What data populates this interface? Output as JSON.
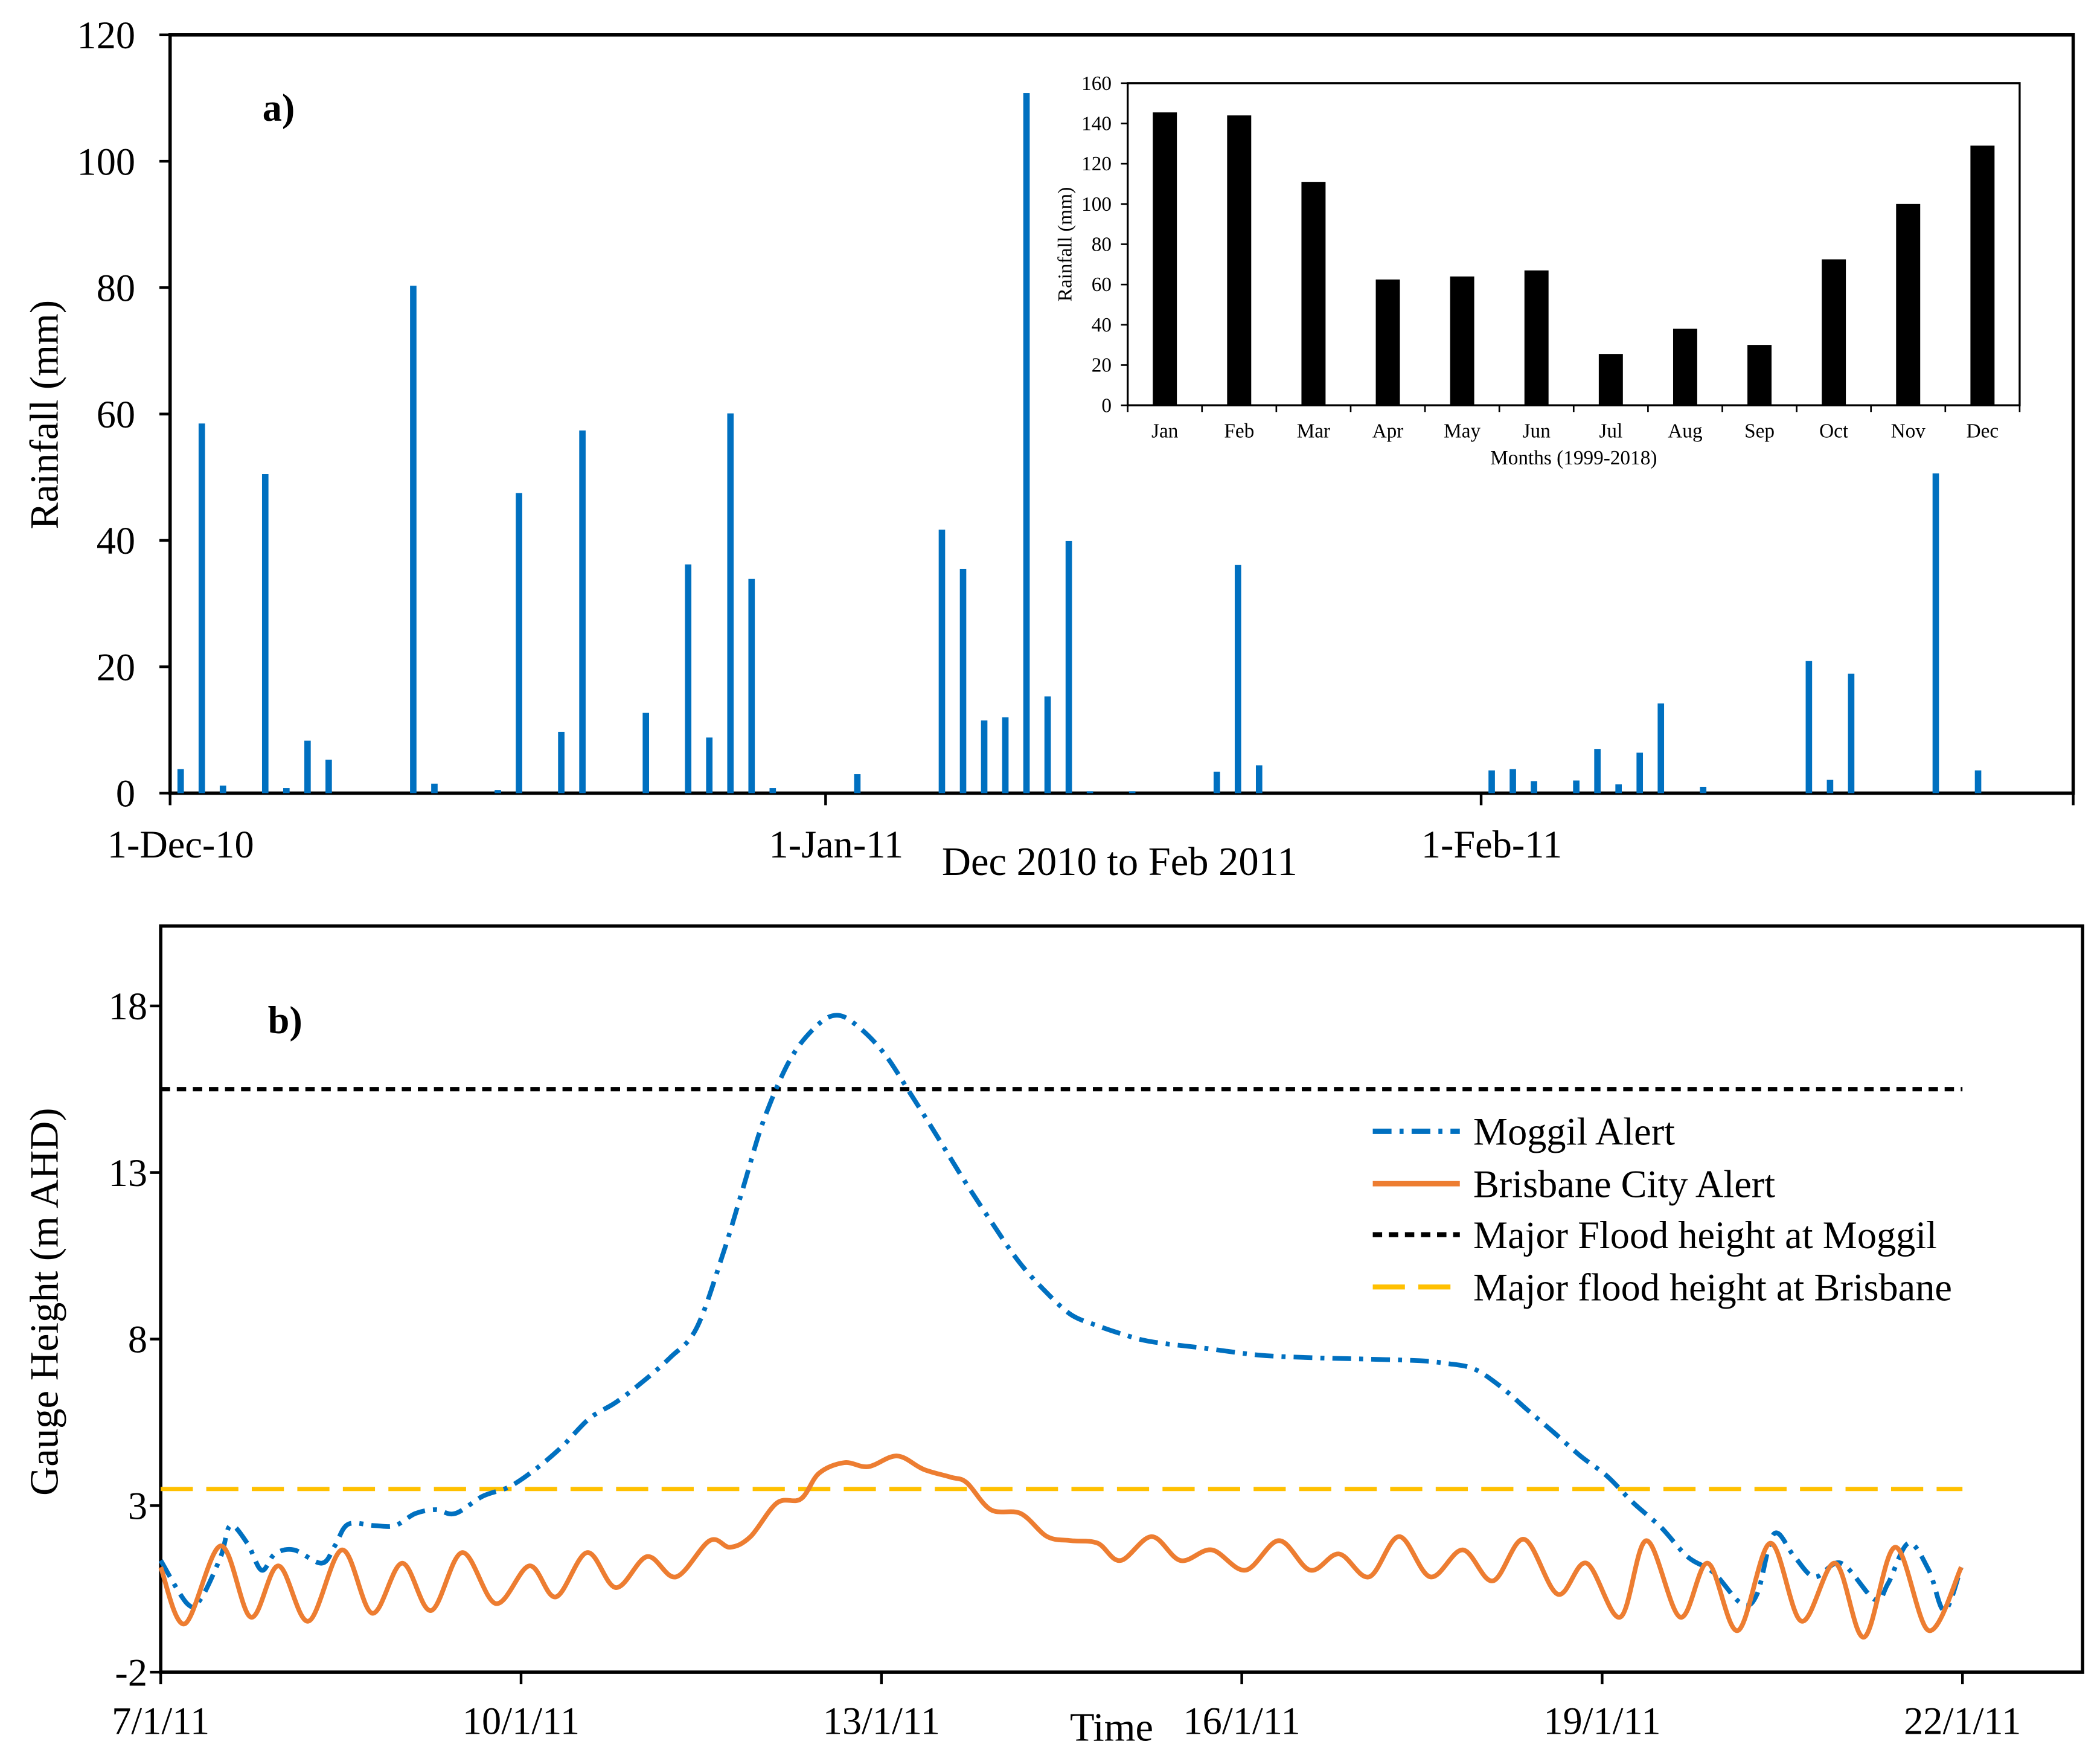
{
  "chart_data": [
    {
      "type": "bar",
      "annotation": "a)",
      "xlabel": "Dec 2010 to Feb 2011",
      "ylabel": "Rainfall (mm)",
      "xlim": [
        0,
        90
      ],
      "ylim": [
        0,
        120
      ],
      "yticks": [
        0,
        20,
        40,
        60,
        80,
        100,
        120
      ],
      "xticks": [
        {
          "day": 0,
          "label": "1-Dec-10"
        },
        {
          "day": 31,
          "label": "1-Jan-11"
        },
        {
          "day": 62,
          "label": "1-Feb-11"
        }
      ],
      "color": "#0070C0",
      "x": [
        0,
        1,
        2,
        4,
        5,
        6,
        7,
        11,
        12,
        15,
        16,
        18,
        19,
        22,
        24,
        25,
        26,
        27,
        28,
        32,
        36,
        37,
        38,
        39,
        40,
        41,
        42,
        43,
        45,
        49,
        50,
        51,
        62,
        63,
        64,
        66,
        67,
        68,
        69,
        70,
        72,
        77,
        78,
        79,
        83,
        85
      ],
      "values": [
        3.8,
        58.5,
        1.2,
        50.5,
        0.8,
        8.3,
        5.3,
        80.3,
        1.5,
        0.5,
        47.5,
        9.7,
        57.4,
        12.7,
        36.2,
        8.8,
        60.1,
        33.9,
        0.8,
        3.0,
        41.7,
        35.5,
        11.5,
        12.0,
        110.8,
        15.3,
        39.9,
        0.3,
        0.3,
        3.4,
        36.1,
        4.4,
        3.6,
        3.8,
        1.9,
        2.0,
        7.0,
        1.4,
        6.4,
        14.2,
        1.0,
        20.9,
        2.1,
        18.9,
        50.6,
        3.6
      ]
    },
    {
      "type": "bar",
      "xlabel": "Months (1999-2018)",
      "ylabel": "Rainfall  (mm)",
      "ylim": [
        0,
        160
      ],
      "yticks": [
        0,
        20,
        40,
        60,
        80,
        100,
        120,
        140,
        160
      ],
      "color": "#000000",
      "categories": [
        "Jan",
        "Feb",
        "Mar",
        "Apr",
        "May",
        "Jun",
        "Jul",
        "Aug",
        "Sep",
        "Oct",
        "Nov",
        "Dec"
      ],
      "values": [
        145.5,
        144,
        111,
        62.5,
        64,
        67,
        25.5,
        38,
        30,
        72.5,
        100,
        129
      ]
    },
    {
      "type": "line",
      "annotation": "b)",
      "xlabel": "Time",
      "ylabel": "Gauge Height (m AHD)",
      "xlim": [
        0,
        16
      ],
      "ylim": [
        -2,
        20.4
      ],
      "yticks": [
        -2,
        3,
        8,
        13,
        18
      ],
      "xticks": [
        {
          "day": 0,
          "label": "7/1/11"
        },
        {
          "day": 3,
          "label": "10/1/11"
        },
        {
          "day": 6,
          "label": "13/1/11"
        },
        {
          "day": 9,
          "label": "16/1/11"
        },
        {
          "day": 12,
          "label": "19/1/11"
        },
        {
          "day": 15,
          "label": "22/1/11"
        }
      ],
      "legend": "right",
      "series": [
        {
          "name": "Moggil Alert",
          "color": "#0070C0",
          "points": [
            [
              0,
              1.35
            ],
            [
              0.22,
              0.06
            ],
            [
              0.33,
              0.18
            ],
            [
              0.5,
              1.47
            ],
            [
              0.58,
              2.4
            ],
            [
              0.72,
              1.87
            ],
            [
              0.84,
              1.06
            ],
            [
              0.95,
              1.55
            ],
            [
              1.11,
              1.67
            ],
            [
              1.34,
              1.27
            ],
            [
              1.45,
              1.79
            ],
            [
              1.56,
              2.44
            ],
            [
              1.78,
              2.4
            ],
            [
              1.95,
              2.4
            ],
            [
              2.12,
              2.76
            ],
            [
              2.29,
              2.88
            ],
            [
              2.45,
              2.76
            ],
            [
              2.68,
              3.28
            ],
            [
              2.9,
              3.56
            ],
            [
              3.12,
              4.09
            ],
            [
              3.34,
              4.77
            ],
            [
              3.57,
              5.62
            ],
            [
              3.79,
              6.1
            ],
            [
              4.01,
              6.71
            ],
            [
              4.24,
              7.44
            ],
            [
              4.46,
              8.32
            ],
            [
              4.68,
              10.54
            ],
            [
              4.85,
              12.56
            ],
            [
              5.02,
              14.57
            ],
            [
              5.24,
              16.39
            ],
            [
              5.46,
              17.4
            ],
            [
              5.63,
              17.72
            ],
            [
              5.8,
              17.4
            ],
            [
              6.02,
              16.59
            ],
            [
              6.24,
              15.38
            ],
            [
              6.47,
              14.05
            ],
            [
              6.69,
              12.76
            ],
            [
              6.91,
              11.55
            ],
            [
              7.14,
              10.34
            ],
            [
              7.36,
              9.45
            ],
            [
              7.58,
              8.73
            ],
            [
              7.8,
              8.4
            ],
            [
              8.03,
              8.12
            ],
            [
              8.25,
              7.92
            ],
            [
              8.7,
              7.72
            ],
            [
              9.14,
              7.52
            ],
            [
              9.59,
              7.44
            ],
            [
              10.03,
              7.4
            ],
            [
              10.48,
              7.35
            ],
            [
              10.7,
              7.27
            ],
            [
              10.93,
              7.11
            ],
            [
              11.15,
              6.59
            ],
            [
              11.37,
              5.9
            ],
            [
              11.59,
              5.22
            ],
            [
              11.82,
              4.49
            ],
            [
              12.04,
              3.89
            ],
            [
              12.26,
              3.08
            ],
            [
              12.49,
              2.35
            ],
            [
              12.71,
              1.47
            ],
            [
              12.93,
              0.98
            ],
            [
              13.16,
              0.06
            ],
            [
              13.29,
              0.34
            ],
            [
              13.43,
              2.15
            ],
            [
              13.6,
              1.47
            ],
            [
              13.77,
              0.86
            ],
            [
              13.99,
              1.27
            ],
            [
              14.27,
              0.18
            ],
            [
              14.38,
              0.66
            ],
            [
              14.55,
              1.87
            ],
            [
              14.72,
              1.06
            ],
            [
              14.85,
              -0.15
            ],
            [
              14.99,
              1.15
            ]
          ]
        },
        {
          "name": "Brisbane City Alert",
          "color": "#ED7D31",
          "points": [
            [
              0,
              1.15
            ],
            [
              0.2,
              -0.55
            ],
            [
              0.5,
              1.79
            ],
            [
              0.75,
              -0.35
            ],
            [
              0.98,
              1.19
            ],
            [
              1.23,
              -0.47
            ],
            [
              1.51,
              1.67
            ],
            [
              1.76,
              -0.23
            ],
            [
              2.01,
              1.27
            ],
            [
              2.25,
              -0.15
            ],
            [
              2.51,
              1.59
            ],
            [
              2.79,
              0.06
            ],
            [
              3.07,
              1.19
            ],
            [
              3.29,
              0.26
            ],
            [
              3.55,
              1.59
            ],
            [
              3.79,
              0.54
            ],
            [
              4.05,
              1.47
            ],
            [
              4.29,
              0.86
            ],
            [
              4.57,
              1.95
            ],
            [
              4.74,
              1.75
            ],
            [
              4.91,
              2.07
            ],
            [
              5.13,
              3.08
            ],
            [
              5.33,
              3.2
            ],
            [
              5.48,
              3.97
            ],
            [
              5.69,
              4.29
            ],
            [
              5.89,
              4.17
            ],
            [
              6.13,
              4.49
            ],
            [
              6.35,
              4.09
            ],
            [
              6.58,
              3.85
            ],
            [
              6.71,
              3.69
            ],
            [
              6.91,
              2.88
            ],
            [
              7.16,
              2.76
            ],
            [
              7.38,
              2.07
            ],
            [
              7.58,
              1.95
            ],
            [
              7.8,
              1.87
            ],
            [
              7.99,
              1.35
            ],
            [
              8.25,
              2.07
            ],
            [
              8.49,
              1.35
            ],
            [
              8.75,
              1.67
            ],
            [
              9.03,
              1.06
            ],
            [
              9.31,
              1.95
            ],
            [
              9.57,
              1.06
            ],
            [
              9.81,
              1.55
            ],
            [
              10.06,
              0.86
            ],
            [
              10.31,
              2.07
            ],
            [
              10.57,
              0.86
            ],
            [
              10.84,
              1.67
            ],
            [
              11.09,
              0.74
            ],
            [
              11.35,
              1.99
            ],
            [
              11.63,
              0.34
            ],
            [
              11.87,
              1.27
            ],
            [
              12.15,
              -0.35
            ],
            [
              12.37,
              1.95
            ],
            [
              12.65,
              -0.35
            ],
            [
              12.88,
              1.27
            ],
            [
              13.13,
              -0.75
            ],
            [
              13.4,
              1.87
            ],
            [
              13.66,
              -0.47
            ],
            [
              13.94,
              1.27
            ],
            [
              14.18,
              -0.95
            ],
            [
              14.44,
              1.75
            ],
            [
              14.72,
              -0.75
            ],
            [
              14.99,
              1.15
            ]
          ]
        },
        {
          "name": "Major Flood height at Moggil",
          "color": "#000000",
          "points": [
            [
              0,
              15.5
            ],
            [
              15,
              15.5
            ]
          ]
        },
        {
          "name": "Major flood height at Brisbane",
          "color": "#FFC000",
          "points": [
            [
              0,
              3.5
            ],
            [
              15,
              3.5
            ]
          ]
        }
      ]
    }
  ]
}
